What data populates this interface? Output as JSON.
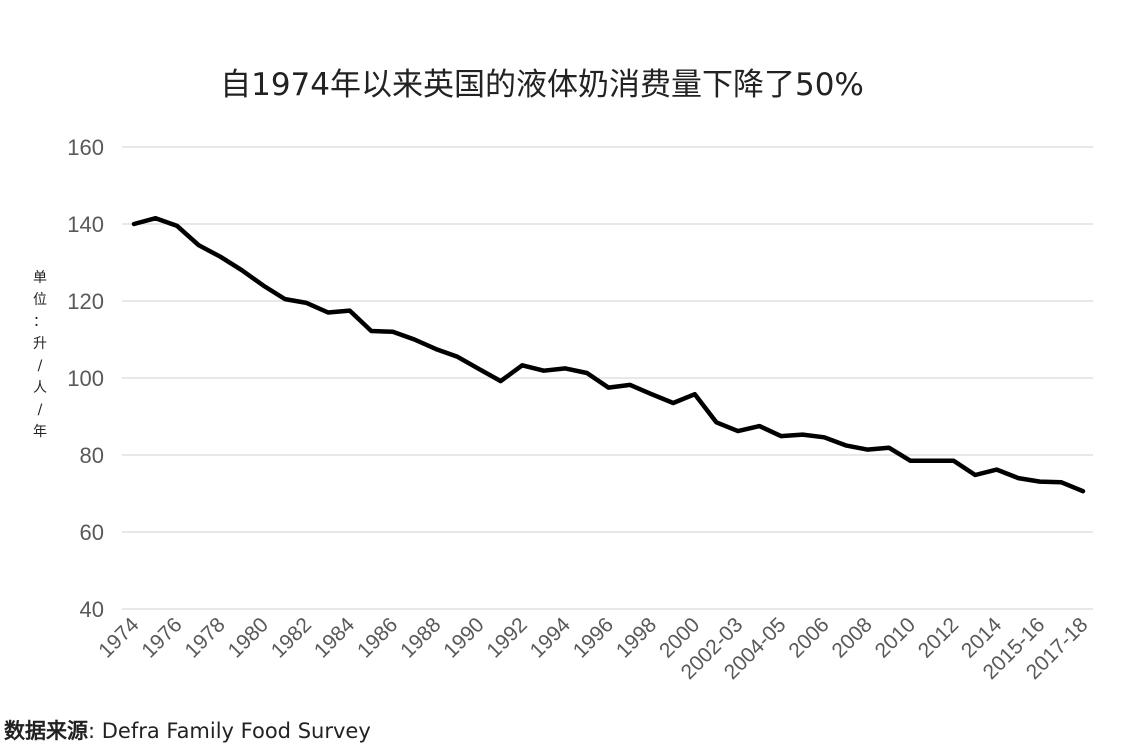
{
  "chart_data": {
    "type": "line",
    "title": "自1974年以来英国的液体奶消费量下降了50%",
    "ylabel": "单位：升/人/年",
    "xlabel": "",
    "ylim": [
      40,
      160
    ],
    "yticks": [
      40,
      60,
      80,
      100,
      120,
      140,
      160
    ],
    "grid": true,
    "legend": "none",
    "x": [
      "1974",
      "1975",
      "1976",
      "1977",
      "1978",
      "1979",
      "1980",
      "1981",
      "1982",
      "1983",
      "1984",
      "1985",
      "1986",
      "1987",
      "1988",
      "1989",
      "1990",
      "1991",
      "1992",
      "1993",
      "1994",
      "1995",
      "1996",
      "1997",
      "1998",
      "1999",
      "2000",
      "2001-02",
      "2002-03",
      "2003-04",
      "2004-05",
      "2005-06",
      "2006",
      "2007",
      "2008",
      "2009",
      "2010",
      "2011",
      "2012",
      "2013",
      "2014",
      "2015",
      "2015-16",
      "2016-17",
      "2017-18"
    ],
    "xtick_labels": [
      "1974",
      "1976",
      "1978",
      "1980",
      "1982",
      "1984",
      "1986",
      "1988",
      "1990",
      "1992",
      "1994",
      "1996",
      "1998",
      "2000",
      "2002-03",
      "2004-05",
      "2006",
      "2008",
      "2010",
      "2012",
      "2014",
      "2015-16",
      "2017-18"
    ],
    "series": [
      {
        "values": [
          140,
          141.5,
          139.5,
          134.5,
          131.5,
          128,
          124,
          120.5,
          119.5,
          117,
          117.5,
          112.2,
          112,
          110,
          107.5,
          105.5,
          102.3,
          99.2,
          103.3,
          101.9,
          102.5,
          101.3,
          97.5,
          98.2,
          95.8,
          93.5,
          95.8,
          88.5,
          86.2,
          87.5,
          84.9,
          85.3,
          84.6,
          82.5,
          81.4,
          81.9,
          78.5,
          78.5,
          78.5,
          74.8,
          76.2,
          74,
          73.1,
          72.9,
          70.6
        ],
        "color": "#000000"
      }
    ]
  },
  "source": {
    "label": "数据来源",
    "text": ": Defra Family  Food Survey"
  }
}
